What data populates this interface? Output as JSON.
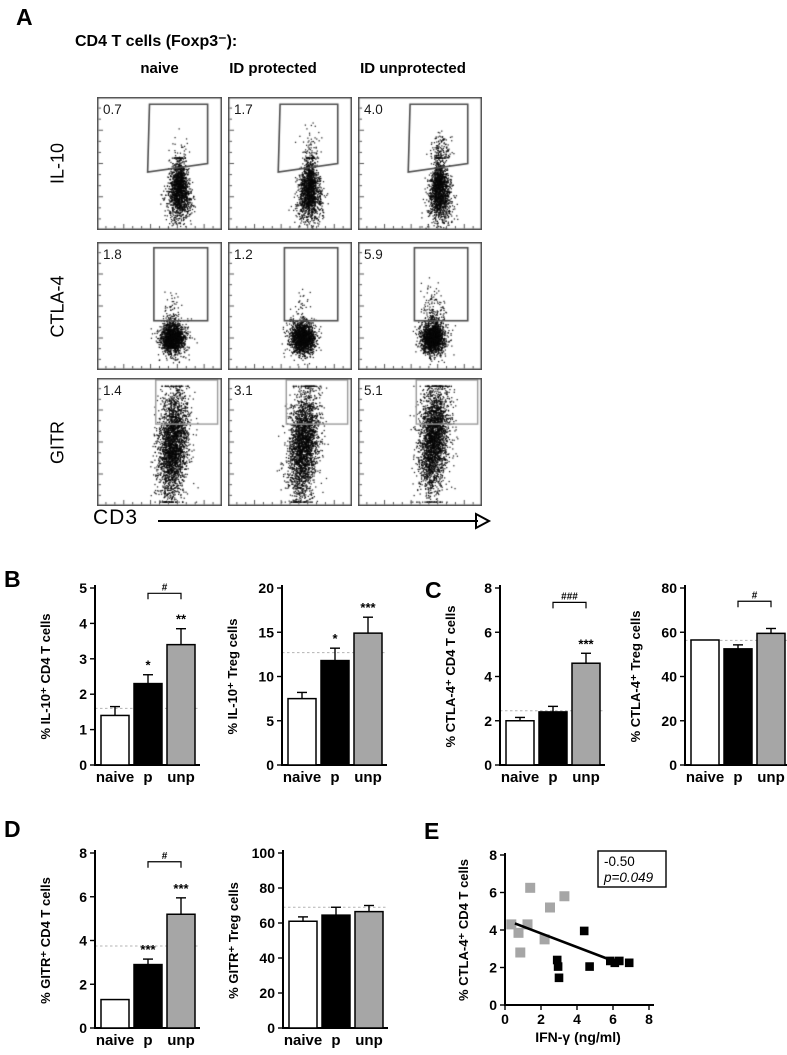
{
  "figure": {
    "labels": {
      "A": "A",
      "B": "B",
      "C": "C",
      "D": "D",
      "E": "E"
    }
  },
  "flow": {
    "title": "CD4 T cells (Foxp3⁻):",
    "columns": [
      "naive",
      "ID protected",
      "ID unprotected"
    ],
    "rows": [
      "IL-10",
      "CTLA-4",
      "GITR"
    ],
    "x_axis_label": "CD3",
    "values": [
      [
        "0.7",
        "1.7",
        "4.0"
      ],
      [
        "1.8",
        "1.2",
        "5.9"
      ],
      [
        "1.4",
        "3.1",
        "5.1"
      ]
    ]
  },
  "colors": {
    "naive_bar": "#ffffff",
    "protected_bar": "#000000",
    "unprotected_bar": "#a6a6a6",
    "gate_dark": "#4d4d4d",
    "gate_light": "#9a9a9a",
    "refline": "#b3b3b3"
  },
  "chart_data": [
    {
      "id": "B1",
      "type": "bar",
      "ylabel": "% IL-10⁺ CD4 T cells",
      "categories": [
        "naive",
        "p",
        "unp"
      ],
      "values": [
        1.4,
        2.3,
        3.4
      ],
      "errors": [
        0.25,
        0.25,
        0.45
      ],
      "sig": [
        "",
        "*",
        "**"
      ],
      "bracket": {
        "from": 1,
        "to": 2,
        "label": "#",
        "y": 4.85
      },
      "refline": 1.6,
      "ylim": [
        0,
        5
      ],
      "yticks": [
        0,
        1,
        2,
        3,
        4,
        5
      ]
    },
    {
      "id": "B2",
      "type": "bar",
      "ylabel": "% IL-10⁺ Treg cells",
      "categories": [
        "naive",
        "p",
        "unp"
      ],
      "values": [
        7.5,
        11.8,
        14.9
      ],
      "errors": [
        0.7,
        1.4,
        1.8
      ],
      "sig": [
        "",
        "*",
        "***"
      ],
      "bracket": null,
      "refline": 12.7,
      "ylim": [
        0,
        20
      ],
      "yticks": [
        0,
        5,
        10,
        15,
        20
      ]
    },
    {
      "id": "C1",
      "type": "bar",
      "ylabel": "% CTLA-4⁺ CD4 T cells",
      "categories": [
        "naive",
        "p",
        "unp"
      ],
      "values": [
        2.0,
        2.4,
        4.6
      ],
      "errors": [
        0.15,
        0.25,
        0.45
      ],
      "sig": [
        "",
        "",
        "***"
      ],
      "bracket": {
        "from": 1,
        "to": 2,
        "label": "###",
        "y": 7.35
      },
      "refline": 2.45,
      "ylim": [
        0,
        8
      ],
      "yticks": [
        0,
        2,
        4,
        6,
        8
      ]
    },
    {
      "id": "C2",
      "type": "bar",
      "ylabel": "% CTLA-4⁺ Treg cells",
      "categories": [
        "naive",
        "p",
        "unp"
      ],
      "values": [
        56.5,
        52.5,
        59.5
      ],
      "errors": [
        1.0,
        1.8,
        2.2
      ],
      "sig": [
        "",
        "",
        ""
      ],
      "bracket": {
        "from": 1,
        "to": 2,
        "label": "#",
        "y": 74
      },
      "refline": 56.3,
      "ylim": [
        0,
        80
      ],
      "yticks": [
        0,
        20,
        40,
        60,
        80
      ]
    },
    {
      "id": "D1",
      "type": "bar",
      "ylabel": "% GITR⁺ CD4 T cells",
      "categories": [
        "naive",
        "p",
        "unp"
      ],
      "values": [
        1.3,
        2.9,
        5.2
      ],
      "errors": [
        0.05,
        0.25,
        0.75
      ],
      "sig": [
        "",
        "***",
        "***"
      ],
      "bracket": {
        "from": 1,
        "to": 2,
        "label": "#",
        "y": 7.6
      },
      "refline": 3.75,
      "ylim": [
        0,
        8
      ],
      "yticks": [
        0,
        2,
        4,
        6,
        8
      ]
    },
    {
      "id": "D2",
      "type": "bar",
      "ylabel": "% GITR⁺ Treg cells",
      "categories": [
        "naive",
        "p",
        "unp"
      ],
      "values": [
        61,
        64.5,
        66.5
      ],
      "errors": [
        2.5,
        4.5,
        3.5
      ],
      "sig": [
        "",
        "",
        ""
      ],
      "bracket": null,
      "refline": 69,
      "ylim": [
        0,
        100
      ],
      "yticks": [
        0,
        20,
        40,
        60,
        80,
        100
      ]
    },
    {
      "id": "E",
      "type": "scatter",
      "ylabel": "% CTLA-4⁺ CD4 T cells",
      "xlabel": "IFN-γ (ng/ml)",
      "xlim": [
        0,
        8
      ],
      "ylim": [
        0,
        8
      ],
      "xticks": [
        0,
        2,
        4,
        6,
        8
      ],
      "yticks": [
        0,
        2,
        4,
        6,
        8
      ],
      "series": [
        {
          "name": "ID unprotected",
          "color": "#a6a6a6",
          "points": [
            [
              0.35,
              4.3
            ],
            [
              1.25,
              4.3
            ],
            [
              0.75,
              3.85
            ],
            [
              0.85,
              2.8
            ],
            [
              1.4,
              6.25
            ],
            [
              2.5,
              5.2
            ],
            [
              3.3,
              5.8
            ],
            [
              2.2,
              3.5
            ]
          ]
        },
        {
          "name": "ID protected",
          "color": "#000000",
          "points": [
            [
              2.9,
              2.4
            ],
            [
              2.95,
              2.05
            ],
            [
              3.0,
              1.45
            ],
            [
              4.4,
              3.95
            ],
            [
              4.7,
              2.05
            ],
            [
              5.85,
              2.35
            ],
            [
              6.1,
              2.25
            ],
            [
              6.35,
              2.35
            ],
            [
              6.9,
              2.25
            ]
          ]
        }
      ],
      "trendline": {
        "x1": 0.55,
        "y1": 4.35,
        "x2": 6.15,
        "y2": 2.3
      },
      "annotation": [
        "-0.50",
        "p=0.049"
      ]
    }
  ]
}
